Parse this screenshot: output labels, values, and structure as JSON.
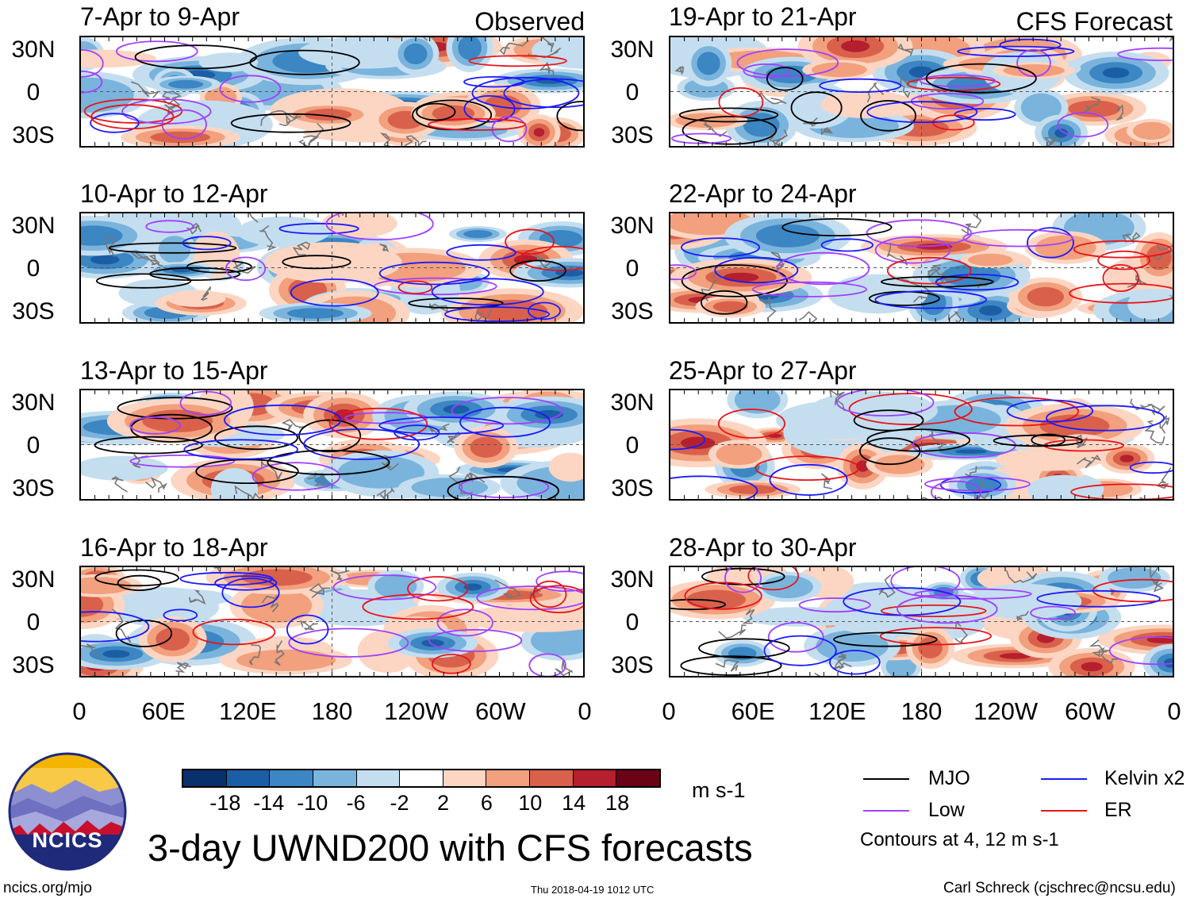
{
  "chart_data": {
    "type": "heatmap",
    "title": "3-day UWND200 with CFS forecasts",
    "units": "m s-1",
    "left_column_label": "Observed",
    "right_column_label": "CFS Forecast",
    "y_tick_labels": [
      "30N",
      "0",
      "30S"
    ],
    "x_tick_labels": [
      "0",
      "60E",
      "120E",
      "180",
      "120W",
      "60W",
      "0"
    ],
    "panels_left": [
      {
        "title": "7-Apr to 9-Apr",
        "seed": 3
      },
      {
        "title": "10-Apr to 12-Apr",
        "seed": 7
      },
      {
        "title": "13-Apr to 15-Apr",
        "seed": 11
      },
      {
        "title": "16-Apr to 18-Apr",
        "seed": 17
      }
    ],
    "panels_right": [
      {
        "title": "19-Apr to 21-Apr",
        "seed": 23
      },
      {
        "title": "22-Apr to 24-Apr",
        "seed": 29
      },
      {
        "title": "25-Apr to 27-Apr",
        "seed": 31
      },
      {
        "title": "28-Apr to 30-Apr",
        "seed": 37
      }
    ],
    "colorbar": {
      "colors": [
        "#08306b",
        "#1c5ea5",
        "#3b86c3",
        "#7ab4dc",
        "#c4def0",
        "#ffffff",
        "#fcd6c3",
        "#f2a07d",
        "#d9614c",
        "#b51f2e",
        "#6b0317"
      ],
      "labels": [
        "-18",
        "-14",
        "-10",
        "-6",
        "-2",
        "2",
        "6",
        "10",
        "14",
        "18"
      ]
    },
    "legend": [
      {
        "label": "MJO",
        "color": "#000000"
      },
      {
        "label": "Kelvin x2",
        "color": "#1a1aff"
      },
      {
        "label": "Low",
        "color": "#a040ff"
      },
      {
        "label": "ER",
        "color": "#e8141a"
      }
    ],
    "contour_note": "Contours at 4, 12 m s-1"
  },
  "footer": {
    "logo_text": "NCICS",
    "url": "ncics.org/mjo",
    "timestamp": "Thu 2018-04-19 1012 UTC",
    "author": "Carl Schreck (cjschrec@ncsu.edu)"
  }
}
